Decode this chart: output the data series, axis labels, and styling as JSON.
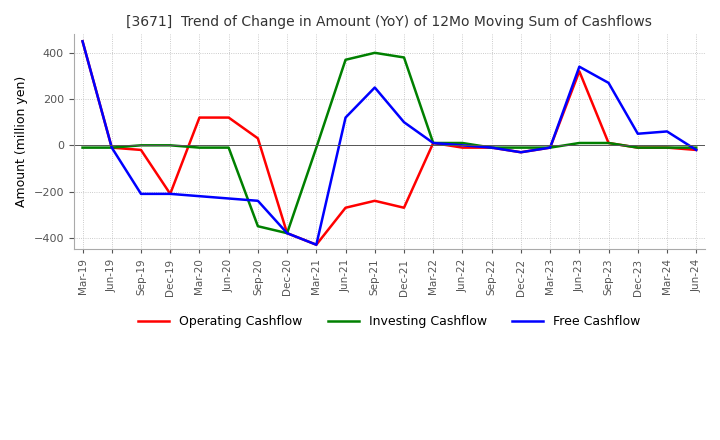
{
  "title": "[3671]  Trend of Change in Amount (YoY) of 12Mo Moving Sum of Cashflows",
  "ylabel": "Amount (million yen)",
  "ylim": [
    -450,
    480
  ],
  "yticks": [
    -400,
    -200,
    0,
    200,
    400
  ],
  "x_labels": [
    "Mar-19",
    "Jun-19",
    "Sep-19",
    "Dec-19",
    "Mar-20",
    "Jun-20",
    "Sep-20",
    "Dec-20",
    "Mar-21",
    "Jun-21",
    "Sep-21",
    "Dec-21",
    "Mar-22",
    "Jun-22",
    "Sep-22",
    "Dec-22",
    "Mar-23",
    "Jun-23",
    "Sep-23",
    "Dec-23",
    "Mar-24",
    "Jun-24"
  ],
  "operating": [
    450,
    -10,
    -20,
    -210,
    120,
    120,
    30,
    -380,
    -430,
    -270,
    -240,
    -270,
    10,
    -10,
    -10,
    -30,
    -10,
    320,
    10,
    -10,
    -10,
    -20
  ],
  "investing": [
    -10,
    -10,
    0,
    0,
    -10,
    -10,
    -350,
    -380,
    -10,
    370,
    400,
    380,
    10,
    10,
    -10,
    -10,
    -10,
    10,
    10,
    -10,
    -10,
    -10
  ],
  "free": [
    450,
    -10,
    -210,
    -210,
    -220,
    -230,
    -240,
    -380,
    -430,
    120,
    250,
    100,
    10,
    0,
    -10,
    -30,
    -10,
    340,
    270,
    50,
    60,
    -20
  ],
  "colors": {
    "operating": "#ff0000",
    "investing": "#008000",
    "free": "#0000ff"
  },
  "legend_labels": [
    "Operating Cashflow",
    "Investing Cashflow",
    "Free Cashflow"
  ],
  "background_color": "#ffffff",
  "grid_color": "#bbbbbb"
}
